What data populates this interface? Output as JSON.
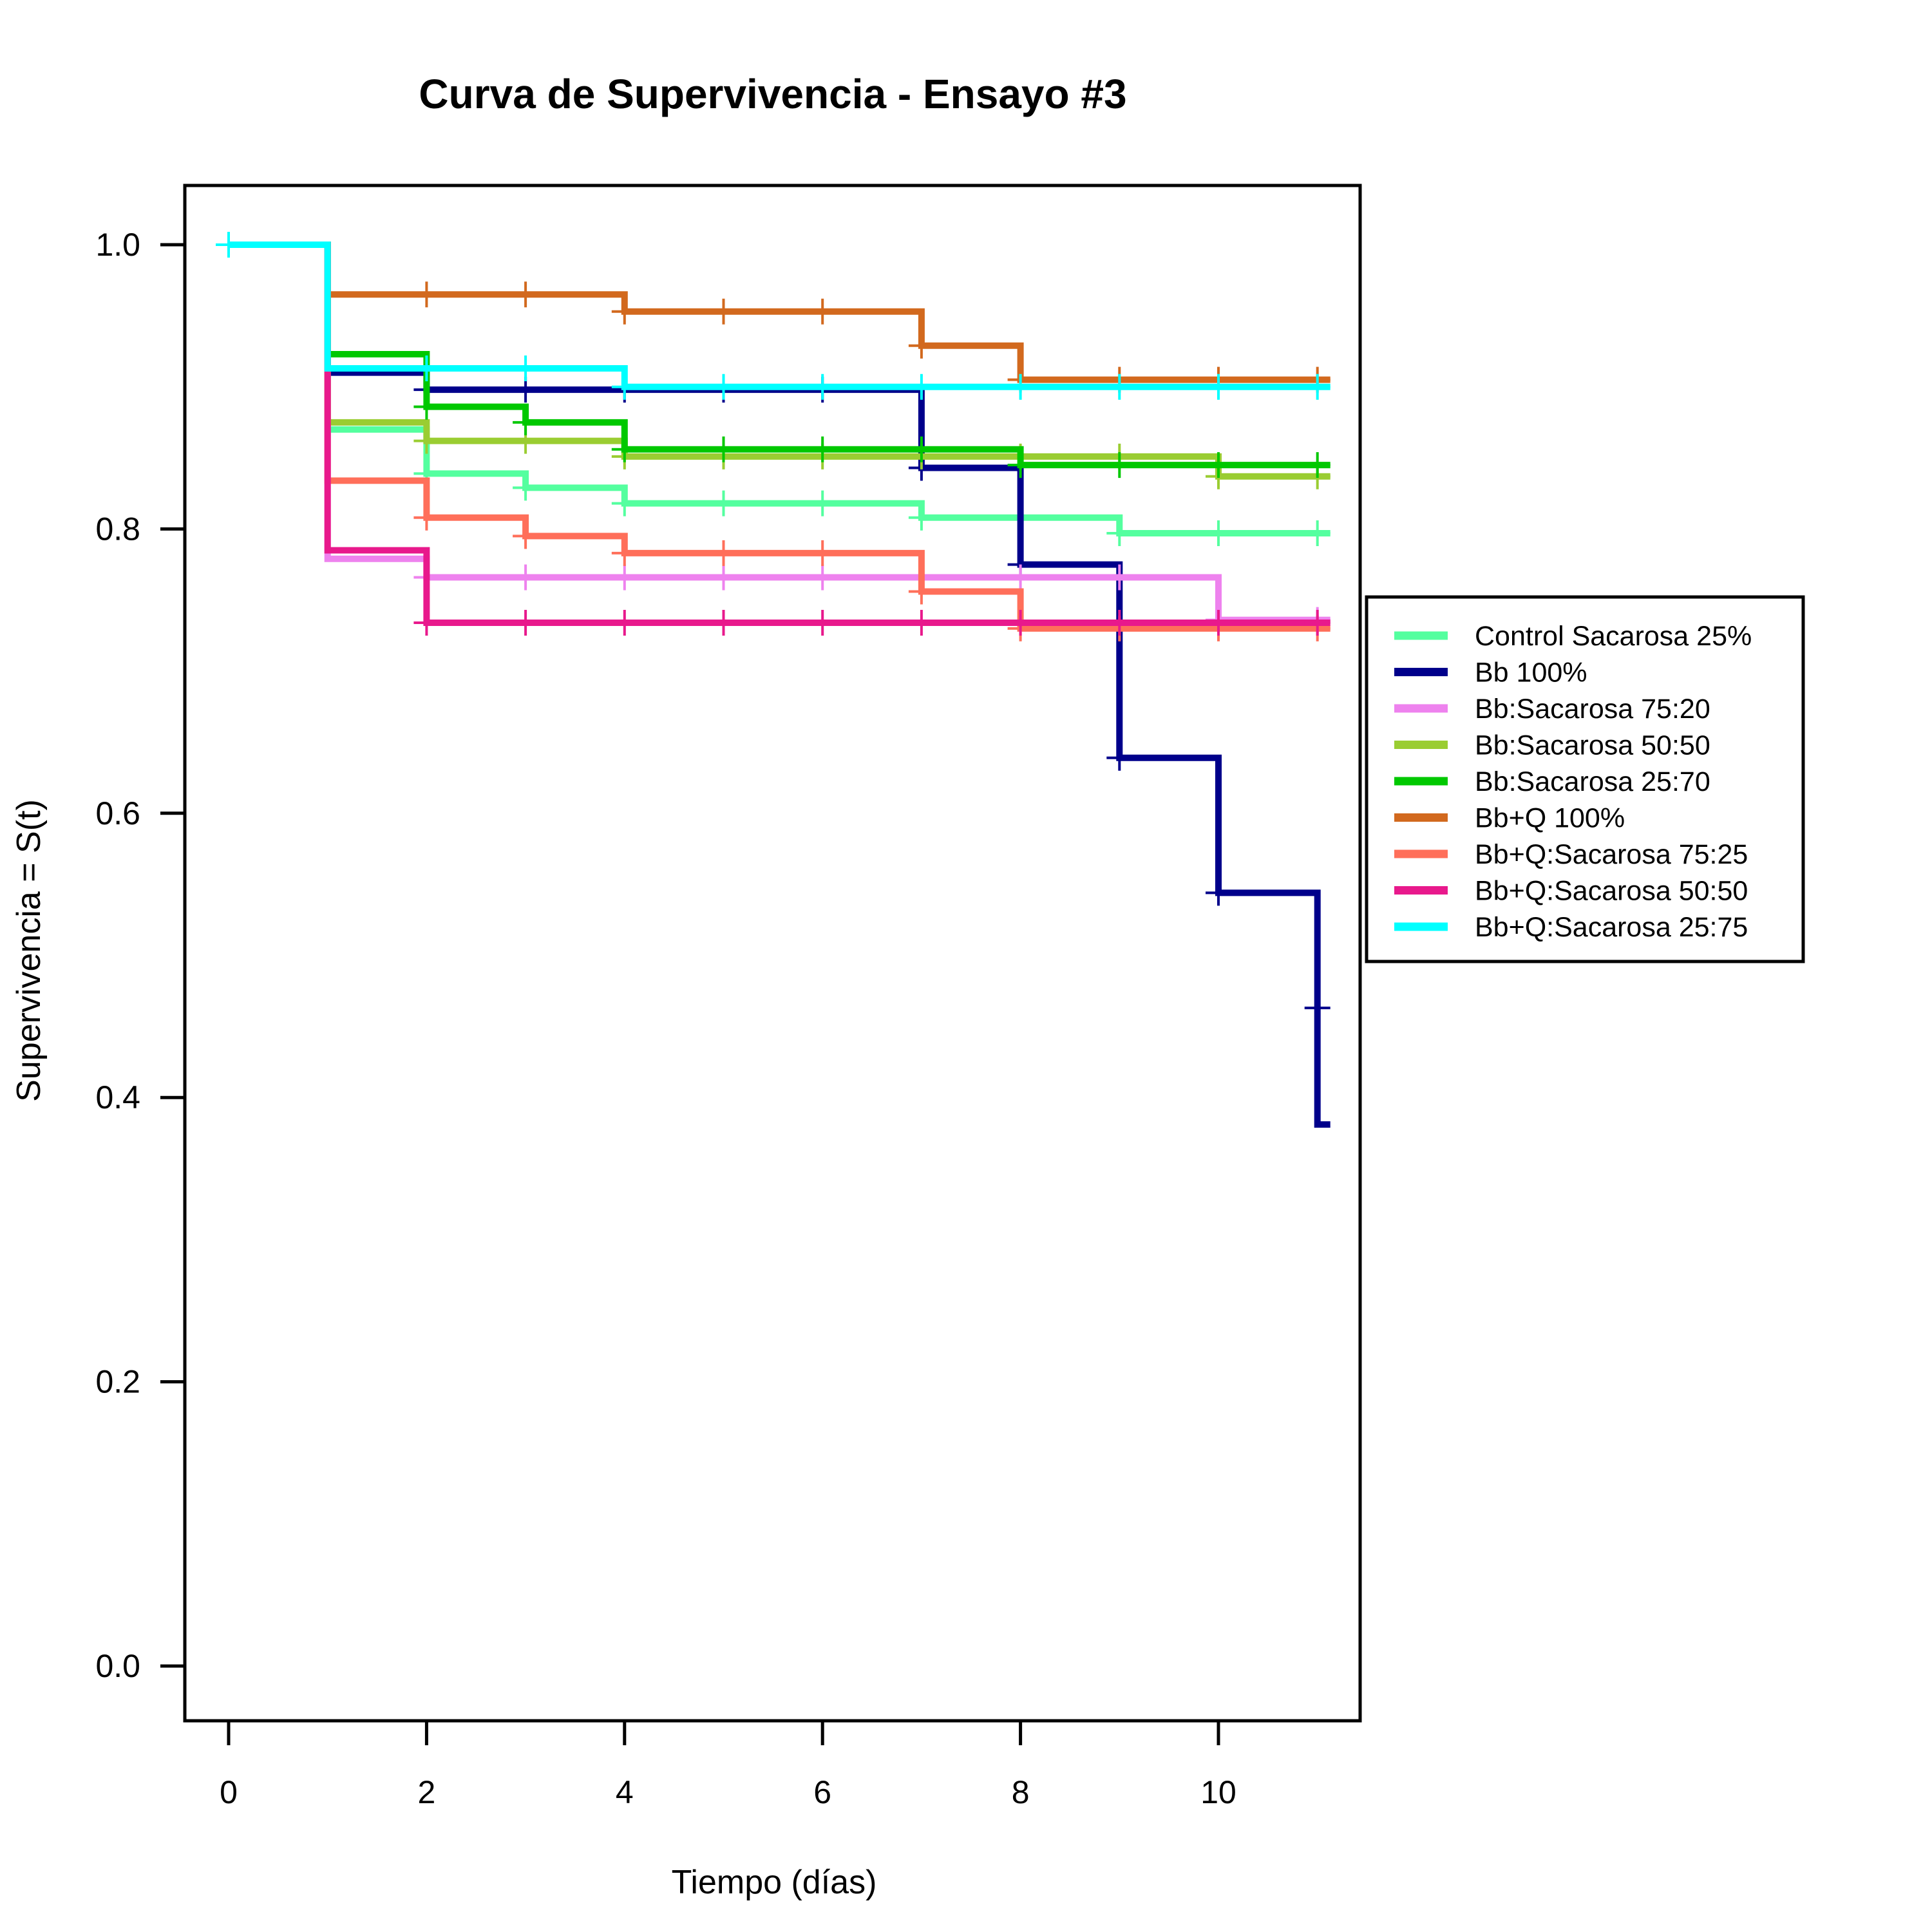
{
  "chart_data": {
    "type": "line",
    "step": true,
    "title": "Curva de Supervivencia - Ensayo #3",
    "xlabel": "Tiempo (días)",
    "ylabel": "Supervivencia = S(t)",
    "xlim": [
      -0.5,
      11.4
    ],
    "ylim": [
      -0.04,
      1.04
    ],
    "xticks": [
      0,
      2,
      4,
      6,
      8,
      10
    ],
    "xtick_labels": [
      "0",
      "2",
      "4",
      "6",
      "8",
      "10"
    ],
    "yticks": [
      0.0,
      0.2,
      0.4,
      0.6,
      0.8,
      1.0
    ],
    "ytick_labels": [
      "0.0",
      "0.2",
      "0.4",
      "0.6",
      "0.8",
      "1.0"
    ],
    "grid": false,
    "legend_position": "right",
    "series": [
      {
        "name": "Control  Sacarosa 25%",
        "color": "#54FF9F",
        "steps": [
          [
            0,
            1.0
          ],
          [
            1,
            0.87
          ],
          [
            2,
            0.839
          ],
          [
            3,
            0.829
          ],
          [
            4,
            0.818
          ],
          [
            7,
            0.808
          ],
          [
            9,
            0.797
          ],
          [
            11,
            0.797
          ]
        ],
        "censor": [
          0,
          2,
          3,
          4,
          5,
          6,
          7,
          8,
          9,
          10,
          11
        ]
      },
      {
        "name": "Bb 100%",
        "color": "#00008B",
        "steps": [
          [
            0,
            1.0
          ],
          [
            1,
            0.91
          ],
          [
            2,
            0.898
          ],
          [
            7,
            0.843
          ],
          [
            8,
            0.775
          ],
          [
            9,
            0.639
          ],
          [
            10,
            0.544
          ],
          [
            11,
            0.381
          ]
        ],
        "censor": [
          0,
          2,
          3,
          4,
          5,
          6,
          7,
          8,
          9,
          10
        ],
        "censor_extra": [
          [
            11,
            0.463
          ]
        ]
      },
      {
        "name": "Bb:Sacarosa 75:20",
        "color": "#EE82EE",
        "steps": [
          [
            0,
            1.0
          ],
          [
            1,
            0.779
          ],
          [
            2,
            0.766
          ],
          [
            10,
            0.736
          ],
          [
            11,
            0.736
          ]
        ],
        "censor": [
          0,
          2,
          3,
          4,
          5,
          6,
          7,
          8,
          9,
          10,
          11
        ]
      },
      {
        "name": "Bb:Sacarosa 50:50",
        "color": "#9ACD32",
        "steps": [
          [
            0,
            1.0
          ],
          [
            1,
            0.875
          ],
          [
            2,
            0.862
          ],
          [
            4,
            0.851
          ],
          [
            10,
            0.837
          ],
          [
            11,
            0.837
          ]
        ],
        "censor": [
          0,
          2,
          3,
          4,
          5,
          6,
          7,
          8,
          9,
          10,
          11
        ]
      },
      {
        "name": "Bb:Sacarosa 25:70",
        "color": "#00C800",
        "steps": [
          [
            0,
            1.0
          ],
          [
            1,
            0.923
          ],
          [
            2,
            0.886
          ],
          [
            3,
            0.875
          ],
          [
            4,
            0.856
          ],
          [
            8,
            0.845
          ],
          [
            11,
            0.845
          ]
        ],
        "censor": [
          0,
          2,
          3,
          4,
          5,
          6,
          7,
          8,
          9,
          10,
          11
        ]
      },
      {
        "name": "Bb+Q 100%",
        "color": "#D2691E",
        "steps": [
          [
            0,
            1.0
          ],
          [
            1,
            0.965
          ],
          [
            4,
            0.953
          ],
          [
            7,
            0.929
          ],
          [
            8,
            0.905
          ],
          [
            11,
            0.905
          ]
        ],
        "censor": [
          0,
          2,
          3,
          4,
          5,
          6,
          7,
          8,
          9,
          10,
          11
        ]
      },
      {
        "name": "Bb+Q:Sacarosa 75:25",
        "color": "#FF6F5A",
        "steps": [
          [
            0,
            1.0
          ],
          [
            1,
            0.834
          ],
          [
            2,
            0.808
          ],
          [
            3,
            0.795
          ],
          [
            4,
            0.783
          ],
          [
            7,
            0.756
          ],
          [
            8,
            0.73
          ],
          [
            11,
            0.73
          ]
        ],
        "censor": [
          0,
          2,
          3,
          4,
          5,
          6,
          7,
          8,
          9,
          10,
          11
        ]
      },
      {
        "name": "Bb+Q:Sacarosa 50:50",
        "color": "#E8198C",
        "steps": [
          [
            0,
            1.0
          ],
          [
            1,
            0.785
          ],
          [
            2,
            0.734
          ],
          [
            11,
            0.734
          ]
        ],
        "censor": [
          0,
          2,
          3,
          4,
          5,
          6,
          7,
          8,
          9,
          10,
          11
        ]
      },
      {
        "name": "Bb+Q:Sacarosa 25:75",
        "color": "#00FFFF",
        "steps": [
          [
            0,
            1.0
          ],
          [
            1,
            0.913
          ],
          [
            4,
            0.9
          ],
          [
            11,
            0.9
          ]
        ],
        "censor": [
          0,
          2,
          3,
          4,
          5,
          6,
          7,
          8,
          9,
          10,
          11
        ]
      }
    ]
  }
}
